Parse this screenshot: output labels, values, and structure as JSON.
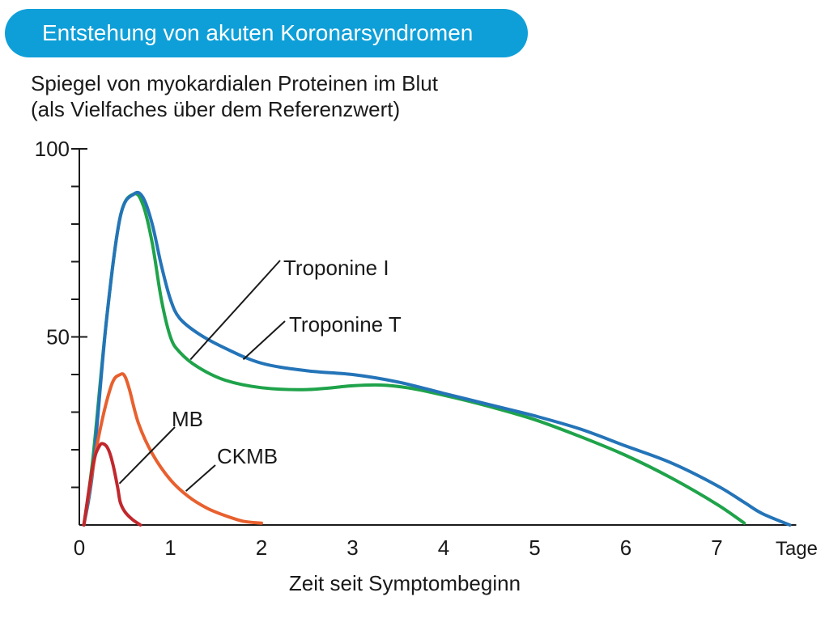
{
  "header": {
    "title": "Entstehung von akuten Koronarsyndromen"
  },
  "chart_data": {
    "type": "line",
    "ylabel_line1": "Spiegel von myokardialen Proteinen im Blut",
    "ylabel_line2": "(als Vielfaches über dem Referenzwert)",
    "xlabel": "Zeit seit Symptombeginn",
    "x_unit": "Tage",
    "xlim": [
      0,
      7.8
    ],
    "ylim": [
      0,
      100
    ],
    "x_ticks": [
      0,
      1,
      2,
      3,
      4,
      5,
      6,
      7
    ],
    "y_tick_labels": [
      50,
      100
    ],
    "y_minor_ticks": [
      10,
      20,
      30,
      40,
      60,
      70,
      80,
      90
    ],
    "grid": false,
    "series": [
      {
        "name": "Troponine I",
        "color": "#2474b8",
        "x": [
          0.05,
          0.15,
          0.3,
          0.45,
          0.6,
          0.7,
          0.8,
          0.9,
          1.0,
          1.1,
          1.3,
          1.6,
          2.0,
          2.5,
          3.0,
          3.5,
          4.0,
          4.5,
          5.0,
          5.5,
          6.0,
          6.5,
          7.0,
          7.3,
          7.5,
          7.8
        ],
        "y": [
          0,
          15,
          55,
          82,
          88,
          87,
          80,
          69,
          60,
          55,
          51,
          47,
          43,
          41,
          40,
          38,
          35,
          32,
          29,
          25.5,
          21,
          16.5,
          10.5,
          6,
          3,
          0
        ]
      },
      {
        "name": "Troponine T",
        "color": "#1fa34a",
        "x": [
          0.05,
          0.15,
          0.3,
          0.45,
          0.6,
          0.7,
          0.8,
          0.9,
          1.0,
          1.1,
          1.3,
          1.6,
          2.0,
          2.5,
          3.0,
          3.3,
          3.6,
          4.0,
          4.5,
          5.0,
          5.5,
          6.0,
          6.5,
          7.0,
          7.3
        ],
        "y": [
          0,
          18,
          55,
          82,
          88,
          85,
          75,
          60,
          50,
          46,
          42,
          38.5,
          36.5,
          36,
          37,
          37.2,
          36.5,
          34.5,
          31.5,
          28,
          23.5,
          18.5,
          12.5,
          5.5,
          0.5
        ]
      },
      {
        "name": "CKMB",
        "color": "#e8602e",
        "x": [
          0.05,
          0.2,
          0.35,
          0.45,
          0.5,
          0.55,
          0.65,
          0.8,
          1.0,
          1.2,
          1.4,
          1.6,
          1.8,
          2.0
        ],
        "y": [
          0,
          22,
          37,
          40,
          39.5,
          36,
          27,
          19,
          12,
          7.5,
          4.5,
          2.5,
          1,
          0.5
        ]
      },
      {
        "name": "MB",
        "color": "#c1272d",
        "x": [
          0.05,
          0.15,
          0.22,
          0.27,
          0.32,
          0.37,
          0.42,
          0.45,
          0.5,
          0.58,
          0.67
        ],
        "y": [
          0,
          16,
          21,
          21.5,
          20,
          16,
          10,
          6,
          3.5,
          1.5,
          0
        ]
      }
    ],
    "annotations": [
      {
        "text": "Troponine I",
        "series": "Troponine I",
        "x": 1.22,
        "y": 44
      },
      {
        "text": "Troponine T",
        "series": "Troponine T",
        "x": 1.8,
        "y": 44
      },
      {
        "text": "MB",
        "series": "MB",
        "x": 0.44,
        "y": 11
      },
      {
        "text": "CKMB",
        "series": "CKMB",
        "x": 1.17,
        "y": 9
      }
    ]
  }
}
